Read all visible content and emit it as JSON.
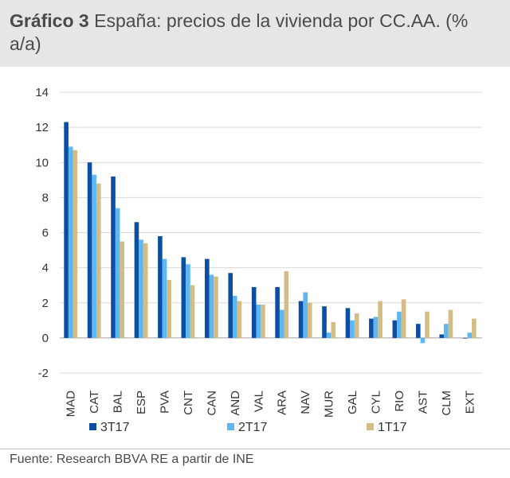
{
  "header": {
    "title_bold": "Gráfico 3",
    "title_rest": " España: precios de la vivienda por CC.AA. (% a/a)"
  },
  "source": "Fuente: Research BBVA RE a partir de INE",
  "chart_data": {
    "type": "bar",
    "categories": [
      "MAD",
      "CAT",
      "BAL",
      "ESP",
      "PVA",
      "CNT",
      "CAN",
      "AND",
      "VAL",
      "ARA",
      "NAV",
      "MUR",
      "GAL",
      "CYL",
      "RIO",
      "AST",
      "CLM",
      "EXT"
    ],
    "series": [
      {
        "name": "3T17",
        "color": "#0b4ea2",
        "values": [
          12.3,
          10.0,
          9.2,
          6.6,
          5.8,
          4.6,
          4.5,
          3.7,
          2.9,
          2.9,
          2.1,
          1.8,
          1.7,
          1.1,
          1.0,
          0.8,
          0.2,
          0.0
        ]
      },
      {
        "name": "2T17",
        "color": "#5bb8f5",
        "values": [
          10.9,
          9.3,
          7.4,
          5.6,
          4.5,
          4.2,
          3.6,
          2.4,
          1.9,
          1.6,
          2.6,
          0.3,
          1.0,
          1.2,
          1.5,
          -0.3,
          0.8,
          0.3
        ]
      },
      {
        "name": "1T17",
        "color": "#d4bd84",
        "values": [
          10.7,
          8.8,
          5.5,
          5.4,
          3.3,
          3.0,
          3.5,
          2.1,
          1.9,
          3.8,
          2.0,
          0.9,
          1.4,
          2.1,
          2.2,
          1.5,
          1.6,
          1.1
        ]
      }
    ],
    "yticks": [
      "14",
      "12",
      "10",
      "8",
      "6",
      "4",
      "2",
      "0",
      "-2"
    ],
    "ylim": [
      -2,
      14
    ],
    "grid": true,
    "legend": "bottom"
  }
}
